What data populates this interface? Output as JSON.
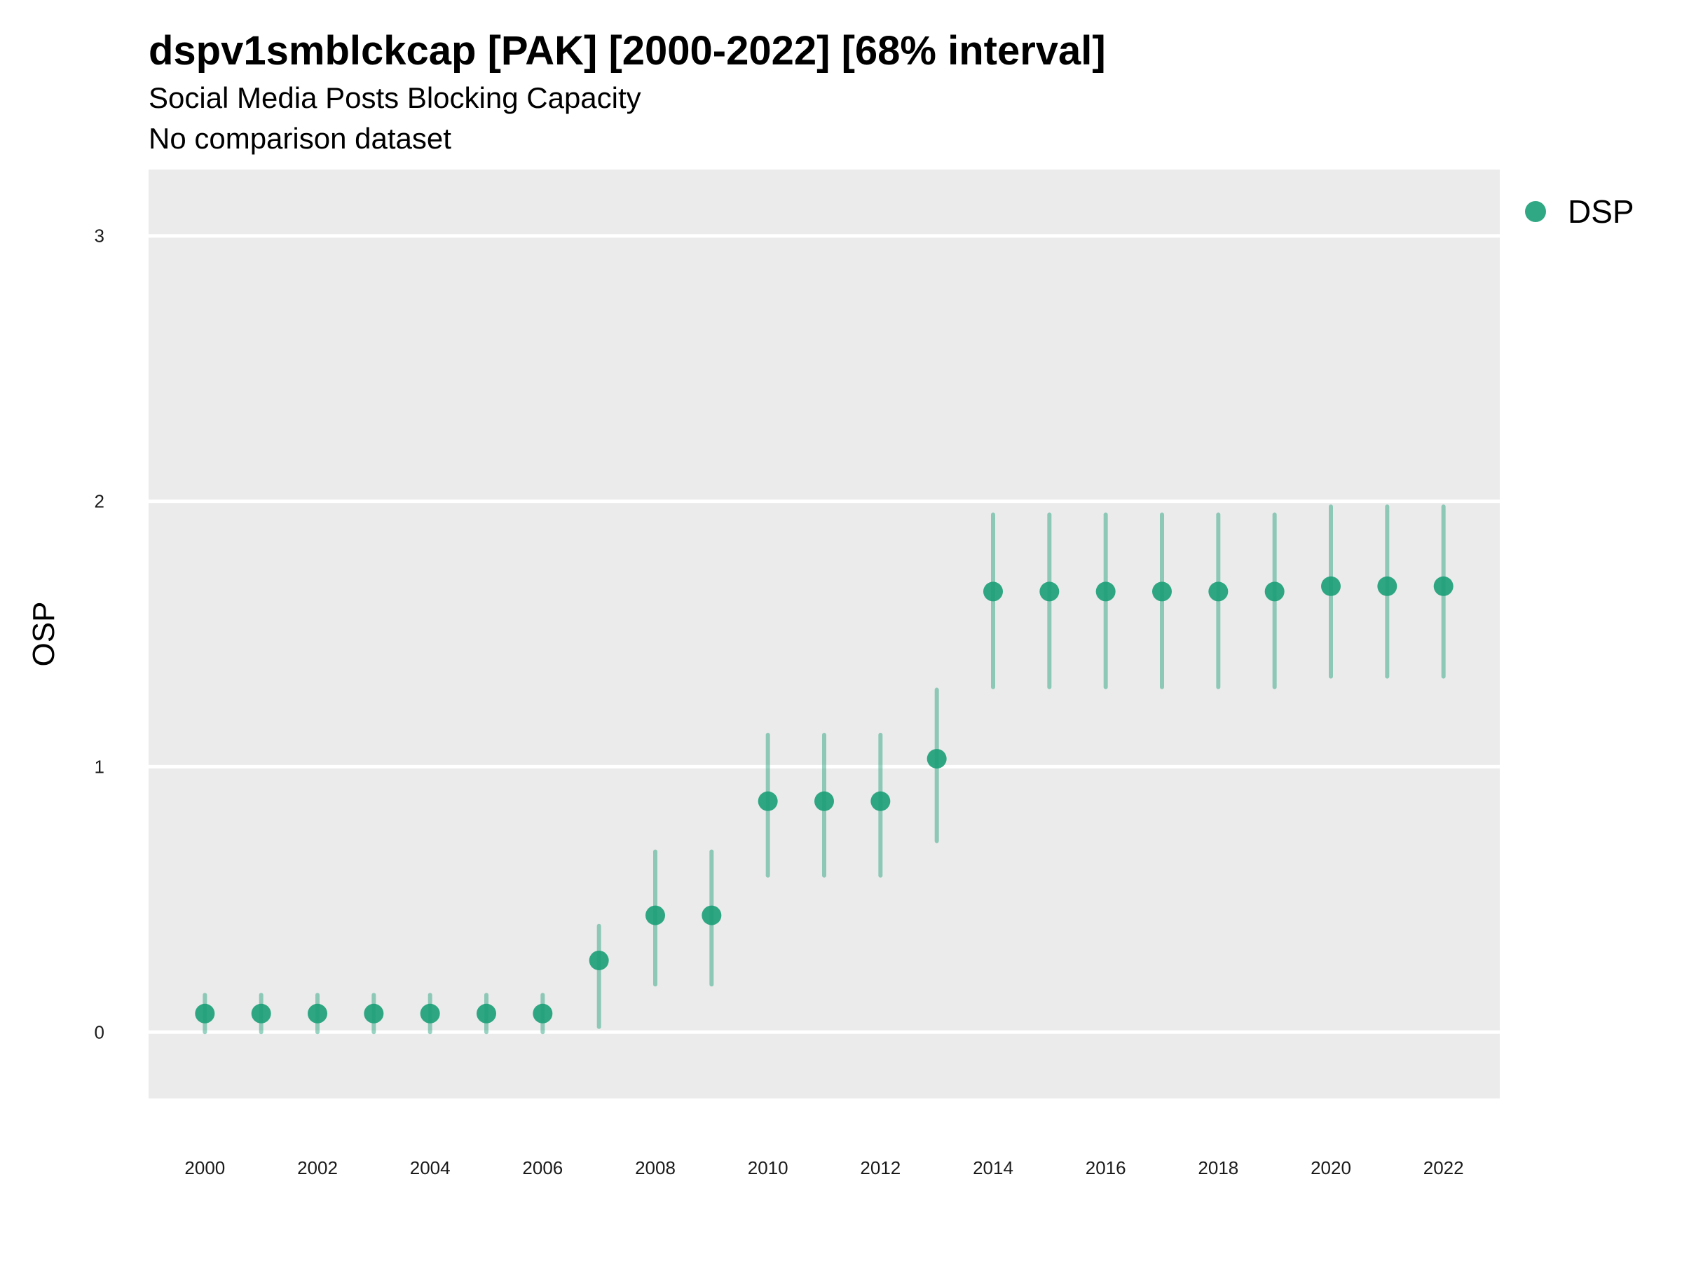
{
  "chart_data": {
    "type": "scatter",
    "title": "dspv1smblckcap [PAK] [2000-2022] [68% interval]",
    "subtitle": "Social Media Posts Blocking Capacity",
    "caption": "No comparison dataset",
    "xlabel": "",
    "ylabel": "OSP",
    "xlim": [
      1999,
      2023
    ],
    "ylim": [
      -0.25,
      3.25
    ],
    "y_ticks": [
      0,
      1,
      2,
      3
    ],
    "x_ticks": [
      2000,
      2002,
      2004,
      2006,
      2008,
      2010,
      2012,
      2014,
      2016,
      2018,
      2020,
      2022
    ],
    "grid": true,
    "legend_position": "top-right",
    "series": [
      {
        "name": "DSP",
        "color": "#1b9e77",
        "x": [
          2000,
          2001,
          2002,
          2003,
          2004,
          2005,
          2006,
          2007,
          2008,
          2009,
          2010,
          2011,
          2012,
          2013,
          2014,
          2015,
          2016,
          2017,
          2018,
          2019,
          2020,
          2021,
          2022
        ],
        "values": [
          0.07,
          0.07,
          0.07,
          0.07,
          0.07,
          0.07,
          0.07,
          0.27,
          0.44,
          0.44,
          0.87,
          0.87,
          0.87,
          1.03,
          1.66,
          1.66,
          1.66,
          1.66,
          1.66,
          1.66,
          1.68,
          1.68,
          1.68
        ],
        "lower": [
          0.0,
          0.0,
          0.0,
          0.0,
          0.0,
          0.0,
          0.0,
          0.02,
          0.18,
          0.18,
          0.59,
          0.59,
          0.59,
          0.72,
          1.3,
          1.3,
          1.3,
          1.3,
          1.3,
          1.3,
          1.34,
          1.34,
          1.34
        ],
        "upper": [
          0.14,
          0.14,
          0.14,
          0.14,
          0.14,
          0.14,
          0.14,
          0.4,
          0.68,
          0.68,
          1.12,
          1.12,
          1.12,
          1.29,
          1.95,
          1.95,
          1.95,
          1.95,
          1.95,
          1.95,
          1.98,
          1.98,
          1.98
        ]
      }
    ]
  }
}
